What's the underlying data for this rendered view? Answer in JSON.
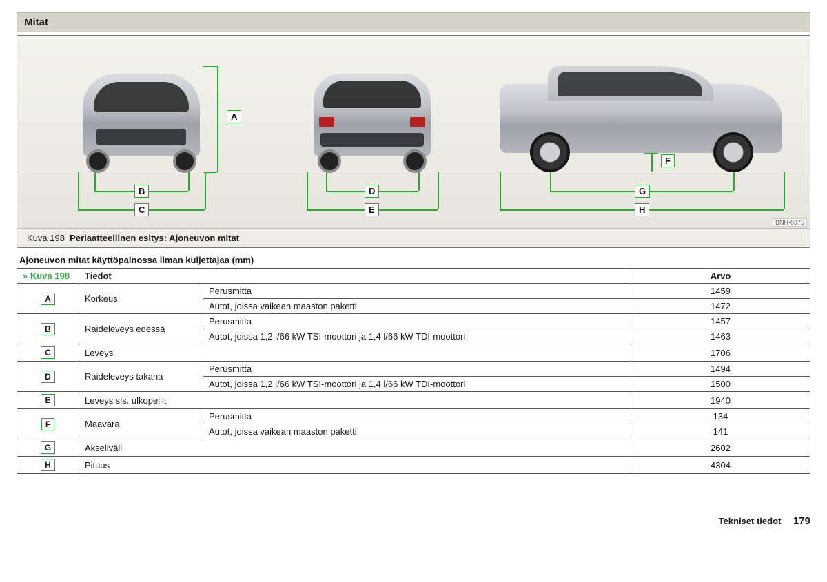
{
  "section_title": "Mitat",
  "figure": {
    "caption_prefix": "Kuva 198",
    "caption_text": "Periaatteellinen esitys: Ajoneuvon mitat",
    "image_code": "BNH-0375",
    "labels": {
      "A": "A",
      "B": "B",
      "C": "C",
      "D": "D",
      "E": "E",
      "F": "F",
      "G": "G",
      "H": "H"
    }
  },
  "table_title": "Ajoneuvon mitat käyttöpainossa ilman kuljettajaa (mm)",
  "headers": {
    "ref": "» Kuva 198",
    "tiedot": "Tiedot",
    "arvo": "Arvo"
  },
  "rows": [
    {
      "letter": "A",
      "name": "Korkeus",
      "sub": [
        {
          "desc": "Perusmitta",
          "val": "1459"
        },
        {
          "desc": "Autot, joissa vaikean maaston paketti",
          "val": "1472"
        }
      ]
    },
    {
      "letter": "B",
      "name": "Raideleveys edessä",
      "sub": [
        {
          "desc": "Perusmitta",
          "val": "1457"
        },
        {
          "desc": "Autot, joissa 1,2 l/66 kW TSI-moottori ja 1,4 l/66 kW TDI-moottori",
          "val": "1463"
        }
      ]
    },
    {
      "letter": "C",
      "name": "Leveys",
      "sub": [
        {
          "desc": "",
          "val": "1706"
        }
      ]
    },
    {
      "letter": "D",
      "name": "Raideleveys takana",
      "sub": [
        {
          "desc": "Perusmitta",
          "val": "1494"
        },
        {
          "desc": "Autot, joissa 1,2 l/66 kW TSI-moottori ja 1,4 l/66 kW TDI-moottori",
          "val": "1500"
        }
      ]
    },
    {
      "letter": "E",
      "name": "Leveys sis. ulkopeilit",
      "sub": [
        {
          "desc": "",
          "val": "1940"
        }
      ]
    },
    {
      "letter": "F",
      "name": "Maavara",
      "sub": [
        {
          "desc": "Perusmitta",
          "val": "134"
        },
        {
          "desc": "Autot, joissa vaikean maaston paketti",
          "val": "141"
        }
      ]
    },
    {
      "letter": "G",
      "name": "Akseliväli",
      "sub": [
        {
          "desc": "",
          "val": "2602"
        }
      ]
    },
    {
      "letter": "H",
      "name": "Pituus",
      "sub": [
        {
          "desc": "",
          "val": "4304"
        }
      ]
    }
  ],
  "footer": {
    "section": "Tekniset tiedot",
    "page": "179"
  },
  "colors": {
    "accent": "#2fa836"
  }
}
